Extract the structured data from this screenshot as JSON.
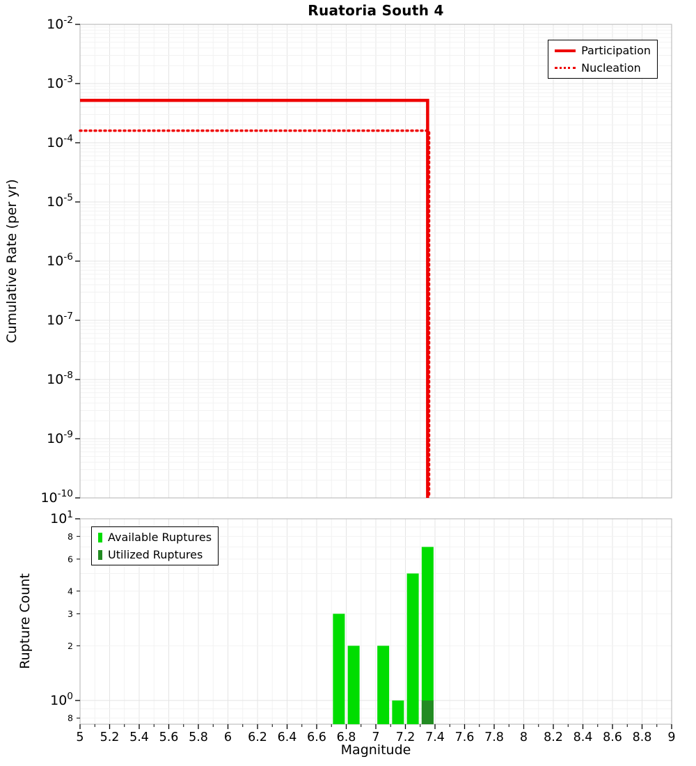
{
  "title": "Ruatoria South 4",
  "x_axis": {
    "label": "Magnitude",
    "min": 5,
    "max": 9,
    "major_step": 0.2,
    "minor_step": 0.1,
    "major_tick_labels": [
      "5",
      "5.2",
      "5.4",
      "5.6",
      "5.8",
      "6",
      "6.2",
      "6.4",
      "6.6",
      "6.8",
      "7",
      "7.2",
      "7.4",
      "7.6",
      "7.8",
      "8",
      "8.2",
      "8.4",
      "8.6",
      "8.8",
      "9"
    ]
  },
  "chart_data": [
    {
      "type": "line",
      "title": "Ruatoria South 4",
      "xlabel": "Magnitude",
      "ylabel": "Cumulative Rate (per yr)",
      "yscale": "log",
      "xlim": [
        5,
        9
      ],
      "ylim": [
        1e-10,
        0.01
      ],
      "grid": true,
      "legend_position": "top-right",
      "y_tick_exponents": [
        -2,
        -3,
        -4,
        -5,
        -6,
        -7,
        -8,
        -9,
        -10
      ],
      "series": [
        {
          "name": "Participation",
          "style": "solid",
          "color": "#ee0000",
          "line_width": 4.5,
          "points": [
            [
              5,
              0.00052
            ],
            [
              7.35,
              0.00052
            ],
            [
              7.35,
              1e-10
            ]
          ]
        },
        {
          "name": "Nucleation",
          "style": "dotted",
          "color": "#ee0000",
          "line_width": 3.5,
          "points": [
            [
              5,
              0.00016
            ],
            [
              7.36,
              0.00016
            ],
            [
              7.36,
              1e-10
            ]
          ]
        }
      ]
    },
    {
      "type": "bar",
      "xlabel": "Magnitude",
      "ylabel": "Rupture Count",
      "yscale": "log",
      "xlim": [
        5,
        9
      ],
      "ylim": [
        0.74,
        10
      ],
      "grid": true,
      "bar_width": 0.08,
      "legend_position": "top-left",
      "major_ticks": [
        {
          "value": 10,
          "exponent": 1
        },
        {
          "value": 1,
          "exponent": 0
        }
      ],
      "minor_tick_labels": [
        {
          "value": 8,
          "label": "8"
        },
        {
          "value": 6,
          "label": "6"
        },
        {
          "value": 4,
          "label": "4"
        },
        {
          "value": 3,
          "label": "3"
        },
        {
          "value": 2,
          "label": "2"
        },
        {
          "value": 0.8,
          "label": "8"
        }
      ],
      "series": [
        {
          "name": "Available Ruptures",
          "color": "#00dd00",
          "bars": [
            {
              "magnitude": 6.75,
              "count": 3
            },
            {
              "magnitude": 6.85,
              "count": 2
            },
            {
              "magnitude": 7.05,
              "count": 2
            },
            {
              "magnitude": 7.15,
              "count": 1
            },
            {
              "magnitude": 7.25,
              "count": 5
            },
            {
              "magnitude": 7.35,
              "count": 7
            }
          ]
        },
        {
          "name": "Utilized Ruptures",
          "color": "#228b22",
          "bars": [
            {
              "magnitude": 7.35,
              "count": 1
            }
          ]
        }
      ]
    }
  ],
  "colors": {
    "grid_major": "#e4e4e4",
    "grid_minor": "#f2f2f2",
    "frame": "#bdbdbd",
    "text": "#000000"
  }
}
